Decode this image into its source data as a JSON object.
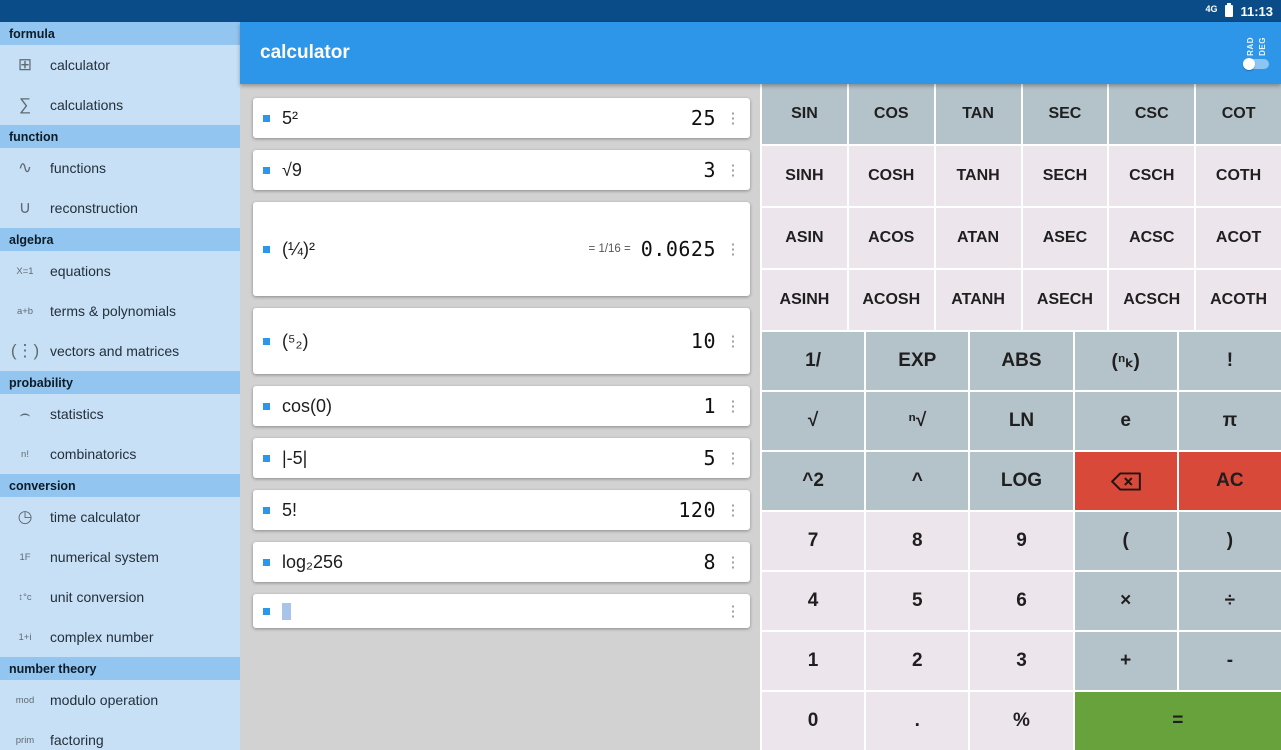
{
  "statusbar": {
    "network": "4G",
    "time": "11:13"
  },
  "appbar": {
    "title": "calculator",
    "angle_toggle": {
      "rad": "RAD",
      "deg": "DEG"
    }
  },
  "colors": {
    "accent": "#2e96e8",
    "statusbar_bg": "#0a4c88",
    "sidebar_header_bg": "#92c5f0",
    "sidebar_item_bg": "#c8e0f6",
    "history_bg": "#d2d2d2",
    "key_dark": "#b4c2c9",
    "key_light": "#ece6ec",
    "key_red": "#d8493a",
    "key_green": "#68a23d"
  },
  "sidebar": {
    "sections": [
      {
        "header": "formula",
        "items": [
          {
            "icon": "⊞",
            "label": "calculator"
          },
          {
            "icon": "∑",
            "label": "calculations"
          }
        ]
      },
      {
        "header": "function",
        "items": [
          {
            "icon": "∿",
            "label": "functions"
          },
          {
            "icon": "∪",
            "label": "reconstruction"
          }
        ]
      },
      {
        "header": "algebra",
        "items": [
          {
            "icon": "X=1",
            "label": "equations"
          },
          {
            "icon": "a+b",
            "label": "terms & polynomials"
          },
          {
            "icon": "(⋮)",
            "label": "vectors and matrices"
          }
        ]
      },
      {
        "header": "probability",
        "items": [
          {
            "icon": "⌢",
            "label": "statistics"
          },
          {
            "icon": "n!",
            "label": "combinatorics"
          }
        ]
      },
      {
        "header": "conversion",
        "items": [
          {
            "icon": "◷",
            "label": "time calculator"
          },
          {
            "icon": "1F",
            "label": "numerical system"
          },
          {
            "icon": "↕°c",
            "label": "unit conversion"
          },
          {
            "icon": "1+i",
            "label": "complex number"
          }
        ]
      },
      {
        "header": "number theory",
        "items": [
          {
            "icon": "mod",
            "label": "modulo operation"
          },
          {
            "icon": "prim",
            "label": "factoring"
          }
        ]
      }
    ]
  },
  "history": {
    "items": [
      {
        "expr": "5²",
        "result": "25"
      },
      {
        "expr": "√9",
        "result": "3"
      },
      {
        "expr": "(¼)²",
        "note": "= 1/16 =",
        "result": "0.0625",
        "size": "tall"
      },
      {
        "expr": "(⁵₂)",
        "result": "10",
        "size": "mid"
      },
      {
        "expr": "cos(0)",
        "result": "1"
      },
      {
        "expr": "|-5|",
        "result": "5"
      },
      {
        "expr": "5!",
        "result": "120"
      },
      {
        "expr": "log₂256",
        "result": "8"
      },
      {
        "expr": "",
        "result": "",
        "cursor": true
      }
    ]
  },
  "keypad": {
    "trig_rows": [
      {
        "style": "dark",
        "keys": [
          {
            "label": "SIN",
            "name": "sin"
          },
          {
            "label": "COS",
            "name": "cos"
          },
          {
            "label": "TAN",
            "name": "tan"
          },
          {
            "label": "SEC",
            "name": "sec"
          },
          {
            "label": "CSC",
            "name": "csc"
          },
          {
            "label": "COT",
            "name": "cot"
          }
        ]
      },
      {
        "style": "light",
        "keys": [
          {
            "label": "SINH",
            "name": "sinh"
          },
          {
            "label": "COSH",
            "name": "cosh"
          },
          {
            "label": "TANH",
            "name": "tanh"
          },
          {
            "label": "SECH",
            "name": "sech"
          },
          {
            "label": "CSCH",
            "name": "csch"
          },
          {
            "label": "COTH",
            "name": "coth"
          }
        ]
      },
      {
        "style": "light",
        "keys": [
          {
            "label": "ASIN",
            "name": "asin"
          },
          {
            "label": "ACOS",
            "name": "acos"
          },
          {
            "label": "ATAN",
            "name": "atan"
          },
          {
            "label": "ASEC",
            "name": "asec"
          },
          {
            "label": "ACSC",
            "name": "acsc"
          },
          {
            "label": "ACOT",
            "name": "acot"
          }
        ]
      },
      {
        "style": "light",
        "keys": [
          {
            "label": "ASINH",
            "name": "asinh"
          },
          {
            "label": "ACOSH",
            "name": "acosh"
          },
          {
            "label": "ATANH",
            "name": "atanh"
          },
          {
            "label": "ASECH",
            "name": "asech"
          },
          {
            "label": "ACSCH",
            "name": "acsch"
          },
          {
            "label": "ACOTH",
            "name": "acoth"
          }
        ]
      }
    ],
    "main_rows": [
      {
        "keys": [
          {
            "label": "1/",
            "name": "reciprocal",
            "style": "dark"
          },
          {
            "label": "EXP",
            "name": "exp",
            "style": "dark"
          },
          {
            "label": "ABS",
            "name": "abs",
            "style": "dark"
          },
          {
            "label": "(ⁿₖ)",
            "name": "binomial",
            "style": "dark"
          },
          {
            "label": "!",
            "name": "factorial",
            "style": "dark"
          }
        ]
      },
      {
        "keys": [
          {
            "label": "√",
            "name": "sqrt",
            "style": "dark"
          },
          {
            "label": "ⁿ√",
            "name": "nth-root",
            "style": "dark"
          },
          {
            "label": "LN",
            "name": "ln",
            "style": "dark"
          },
          {
            "label": "e",
            "name": "euler-e",
            "style": "dark"
          },
          {
            "label": "π",
            "name": "pi",
            "style": "dark"
          }
        ]
      },
      {
        "keys": [
          {
            "label": "^2",
            "name": "square",
            "style": "dark"
          },
          {
            "label": "^",
            "name": "power",
            "style": "dark"
          },
          {
            "label": "LOG",
            "name": "log",
            "style": "dark"
          },
          {
            "label": "⌫",
            "name": "backspace",
            "style": "red",
            "icon": "backspace"
          },
          {
            "label": "AC",
            "name": "all-clear",
            "style": "red"
          }
        ]
      },
      {
        "keys": [
          {
            "label": "7",
            "name": "digit-7",
            "style": "light"
          },
          {
            "label": "8",
            "name": "digit-8",
            "style": "light"
          },
          {
            "label": "9",
            "name": "digit-9",
            "style": "light"
          },
          {
            "label": "(",
            "name": "open-paren",
            "style": "dark"
          },
          {
            "label": ")",
            "name": "close-paren",
            "style": "dark"
          }
        ]
      },
      {
        "keys": [
          {
            "label": "4",
            "name": "digit-4",
            "style": "light"
          },
          {
            "label": "5",
            "name": "digit-5",
            "style": "light"
          },
          {
            "label": "6",
            "name": "digit-6",
            "style": "light"
          },
          {
            "label": "×",
            "name": "multiply",
            "style": "dark"
          },
          {
            "label": "÷",
            "name": "divide",
            "style": "dark"
          }
        ]
      },
      {
        "keys": [
          {
            "label": "1",
            "name": "digit-1",
            "style": "light"
          },
          {
            "label": "2",
            "name": "digit-2",
            "style": "light"
          },
          {
            "label": "3",
            "name": "digit-3",
            "style": "light"
          },
          {
            "label": "+",
            "name": "plus",
            "style": "dark"
          },
          {
            "label": "-",
            "name": "minus",
            "style": "dark"
          }
        ]
      },
      {
        "keys": [
          {
            "label": "0",
            "name": "digit-0",
            "style": "light"
          },
          {
            "label": ".",
            "name": "decimal",
            "style": "light"
          },
          {
            "label": "%",
            "name": "percent",
            "style": "light"
          },
          {
            "label": "=",
            "name": "equals",
            "style": "green",
            "span": 2
          }
        ]
      }
    ]
  }
}
